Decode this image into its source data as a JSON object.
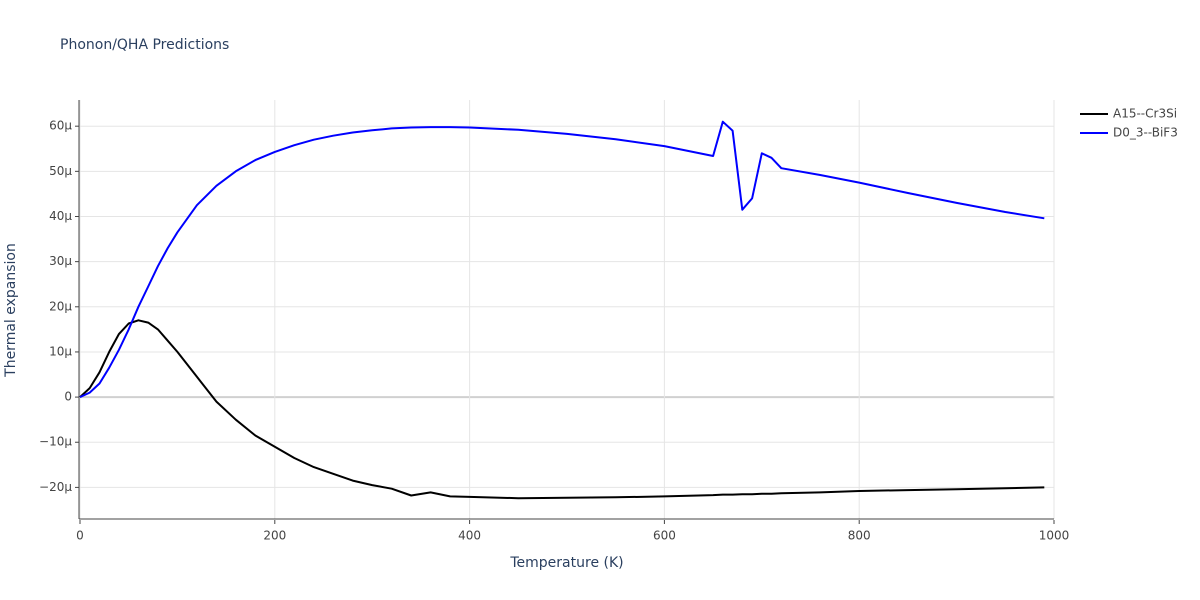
{
  "chart_data": {
    "type": "line",
    "title": "Phonon/QHA Predictions",
    "x_label": "Temperature (K)",
    "y_label": "Thermal expansion",
    "x": [
      0,
      10,
      20,
      30,
      40,
      50,
      60,
      70,
      80,
      90,
      100,
      120,
      140,
      160,
      180,
      200,
      220,
      240,
      260,
      280,
      300,
      320,
      340,
      360,
      380,
      400,
      450,
      500,
      550,
      600,
      650,
      660,
      670,
      680,
      690,
      700,
      710,
      720,
      760,
      800,
      850,
      900,
      950,
      990
    ],
    "series": [
      {
        "name": "A15--Cr3Si",
        "color": "#000000",
        "values": [
          0,
          2,
          5.5,
          10,
          14,
          16.3,
          17,
          16.5,
          15,
          12.5,
          10,
          4.5,
          -1,
          -5,
          -8.5,
          -11,
          -13.5,
          -15.5,
          -17,
          -18.5,
          -19.5,
          -20.3,
          -21.8,
          -21.1,
          -22,
          -22.1,
          -22.4,
          -22.3,
          -22.2,
          -22,
          -21.7,
          -21.6,
          -21.6,
          -21.5,
          -21.5,
          -21.4,
          -21.4,
          -21.3,
          -21.1,
          -20.8,
          -20.6,
          -20.4,
          -20.2,
          -20
        ]
      },
      {
        "name": "D0_3--BiF3",
        "color": "#0000ff",
        "values": [
          0,
          1,
          3,
          6.5,
          10.5,
          15,
          20,
          24.5,
          29,
          33,
          36.5,
          42.5,
          46.8,
          50,
          52.5,
          54.3,
          55.8,
          57,
          57.9,
          58.6,
          59.1,
          59.5,
          59.7,
          59.8,
          59.8,
          59.7,
          59.2,
          58.3,
          57.1,
          55.6,
          53.4,
          61,
          59,
          41.5,
          44,
          54,
          53,
          50.7,
          49.2,
          47.5,
          45.2,
          43,
          41,
          39.6
        ]
      }
    ],
    "xlim": [
      0,
      1000
    ],
    "xticks": [
      0,
      200,
      400,
      600,
      800,
      1000
    ],
    "ylim": [
      -27,
      65.8
    ],
    "yticks": [
      {
        "value": -20,
        "label": "−20μ"
      },
      {
        "value": -10,
        "label": "−10μ"
      },
      0,
      {
        "value": 10,
        "label": "10μ"
      },
      {
        "value": 20,
        "label": "20μ"
      },
      {
        "value": 30,
        "label": "30μ"
      },
      {
        "value": 40,
        "label": "40μ"
      },
      {
        "value": 50,
        "label": "50μ"
      },
      {
        "value": 60,
        "label": "60μ"
      }
    ],
    "grid": true,
    "legend": "top-right"
  }
}
